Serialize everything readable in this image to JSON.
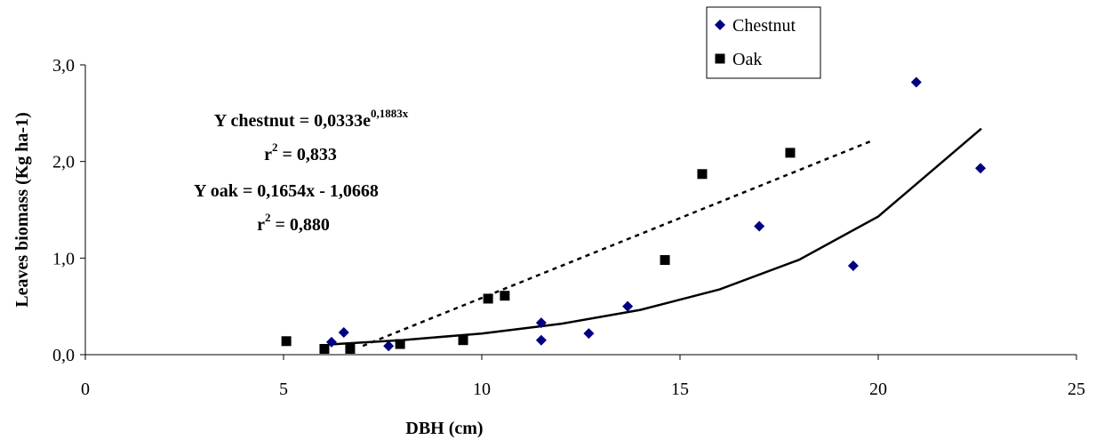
{
  "chart_data": {
    "type": "scatter",
    "x_label": "DBH (cm)",
    "y_label": "Leaves biomass (Kg ha-1)",
    "xlim": [
      0,
      25
    ],
    "xticks": [
      0,
      5,
      10,
      15,
      20,
      25
    ],
    "ylim": [
      0,
      3
    ],
    "yticks": [
      {
        "value": 0,
        "label": "0,0"
      },
      {
        "value": 1,
        "label": "1,0"
      },
      {
        "value": 2,
        "label": "2,0"
      },
      {
        "value": 3,
        "label": "3,0"
      }
    ],
    "grid": false,
    "legend": "top",
    "series": [
      {
        "name": "Chestnut",
        "color": "#000080",
        "marker": "diamond",
        "x": [
          6.21,
          6.52,
          7.65,
          11.5,
          11.5,
          12.7,
          13.68,
          17.0,
          19.37,
          20.96,
          22.58
        ],
        "values": [
          0.13,
          0.23,
          0.09,
          0.15,
          0.33,
          0.22,
          0.5,
          1.33,
          0.92,
          2.82,
          1.93
        ]
      },
      {
        "name": "Oak",
        "color": "#000000",
        "marker": "square",
        "x": [
          5.07,
          6.03,
          6.68,
          7.94,
          9.53,
          10.16,
          10.58,
          14.62,
          15.56,
          17.78
        ],
        "values": [
          0.14,
          0.06,
          0.06,
          0.11,
          0.15,
          0.58,
          0.61,
          0.98,
          1.87,
          2.09
        ]
      }
    ],
    "trendlines": [
      {
        "style": "solid",
        "color": "#000000",
        "x": [
          6.2,
          8,
          10,
          12,
          14,
          16,
          18,
          20,
          22.6
        ],
        "values": [
          0.107,
          0.151,
          0.219,
          0.319,
          0.464,
          0.675,
          0.982,
          1.43,
          2.34
        ]
      },
      {
        "style": "dotted",
        "color": "#000000",
        "x": [
          7,
          19.8
        ],
        "values": [
          0.091,
          2.208
        ]
      }
    ],
    "annotations": [
      {
        "text": "Y chestnut = 0,0333e",
        "sup": "0,1883x"
      },
      {
        "text": "r",
        "sup": "2",
        "after": " = 0,833"
      },
      {
        "text": "Y oak = 0,1654x - 1,0668"
      },
      {
        "text": "r",
        "sup": "2",
        "after": " = 0,880"
      }
    ]
  }
}
